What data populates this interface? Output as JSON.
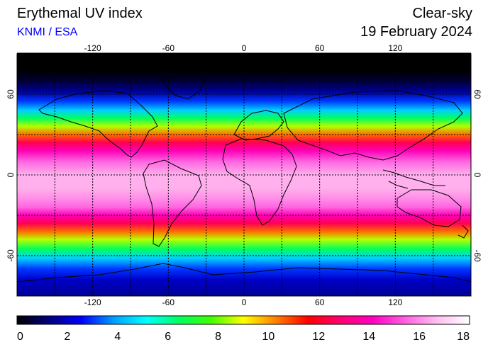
{
  "header": {
    "title": "Erythemal UV index",
    "credit": "KNMI / ESA",
    "credit_color": "#0000ff",
    "mode": "Clear-sky",
    "date": "19 February 2024"
  },
  "map": {
    "projection": "equirectangular",
    "lon_range": [
      -180,
      180
    ],
    "lat_range": [
      -90,
      90
    ],
    "lon_ticks": [
      -120,
      -60,
      0,
      60,
      120
    ],
    "lat_ticks": [
      60,
      0,
      -60
    ],
    "lon_tick_labels": [
      "-120",
      "-60",
      "0",
      "60",
      "120"
    ],
    "lat_tick_labels": [
      "60",
      "0",
      "-60"
    ],
    "grid_lon_step": 30,
    "grid_lat_step": 30,
    "grid_style": "dotted"
  },
  "colorbar": {
    "min": 0,
    "max": 18,
    "labels": [
      "0",
      "2",
      "4",
      "6",
      "8",
      "10",
      "12",
      "14",
      "16",
      "18"
    ],
    "colors": [
      "#000000",
      "#000080",
      "#0000ff",
      "#00a0ff",
      "#00ffff",
      "#00ff60",
      "#40ff00",
      "#ffff00",
      "#ff8000",
      "#ff0000",
      "#ff0070",
      "#ff00c0",
      "#ff60e0",
      "#ffc0f0",
      "#ffffff"
    ]
  },
  "uv_profile": {
    "lat": [
      90,
      78,
      70,
      62,
      55,
      48,
      42,
      36,
      30,
      24,
      18,
      10,
      0,
      -10,
      -18,
      -24,
      -30,
      -36,
      -42,
      -48,
      -55,
      -62,
      -70,
      -78,
      -90
    ],
    "uv": [
      0,
      0,
      0.5,
      1.5,
      3,
      4.5,
      6.5,
      8.5,
      10.5,
      12.5,
      14,
      15.5,
      16.5,
      16.5,
      16,
      15.5,
      14,
      12.5,
      10.5,
      8.5,
      6.5,
      4.5,
      3,
      2,
      1.5
    ]
  }
}
